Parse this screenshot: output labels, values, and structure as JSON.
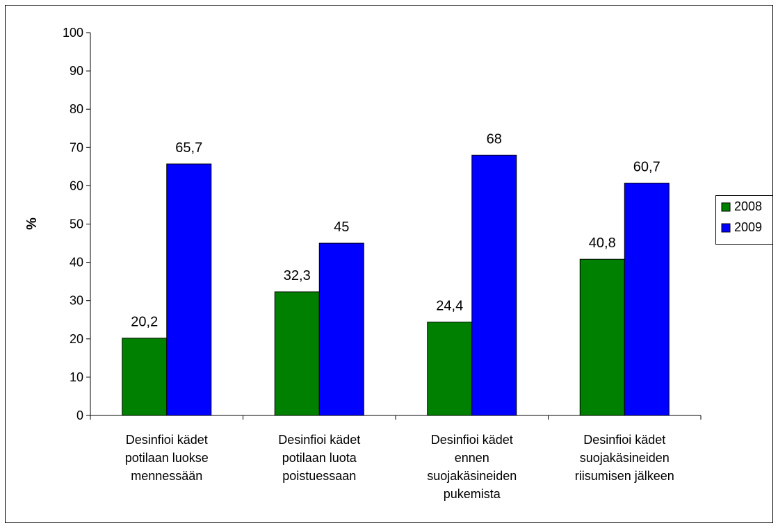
{
  "chart_data": {
    "type": "bar",
    "ylabel": "%",
    "ylim": [
      0,
      100
    ],
    "yticks": [
      0,
      10,
      20,
      30,
      40,
      50,
      60,
      70,
      80,
      90,
      100
    ],
    "categories": [
      [
        "Desinfioi kädet",
        "potilaan luokse",
        "mennessään"
      ],
      [
        "Desinfioi kädet",
        "potilaan luota",
        "poistuessaan"
      ],
      [
        "Desinfioi kädet",
        "ennen",
        "suojakäsineiden",
        "pukemista"
      ],
      [
        "Desinfioi kädet",
        "suojakäsineiden",
        "riisumisen jälkeen"
      ]
    ],
    "series": [
      {
        "name": "2008",
        "color": "#008000",
        "values": [
          20.2,
          32.3,
          24.4,
          40.8
        ],
        "labels": [
          "20,2",
          "32,3",
          "24,4",
          "40,8"
        ]
      },
      {
        "name": "2009",
        "color": "#0000ff",
        "values": [
          65.7,
          45,
          68,
          60.7
        ],
        "labels": [
          "65,7",
          "45",
          "68",
          "60,7"
        ]
      }
    ],
    "grid": false,
    "legend_position": "right"
  }
}
